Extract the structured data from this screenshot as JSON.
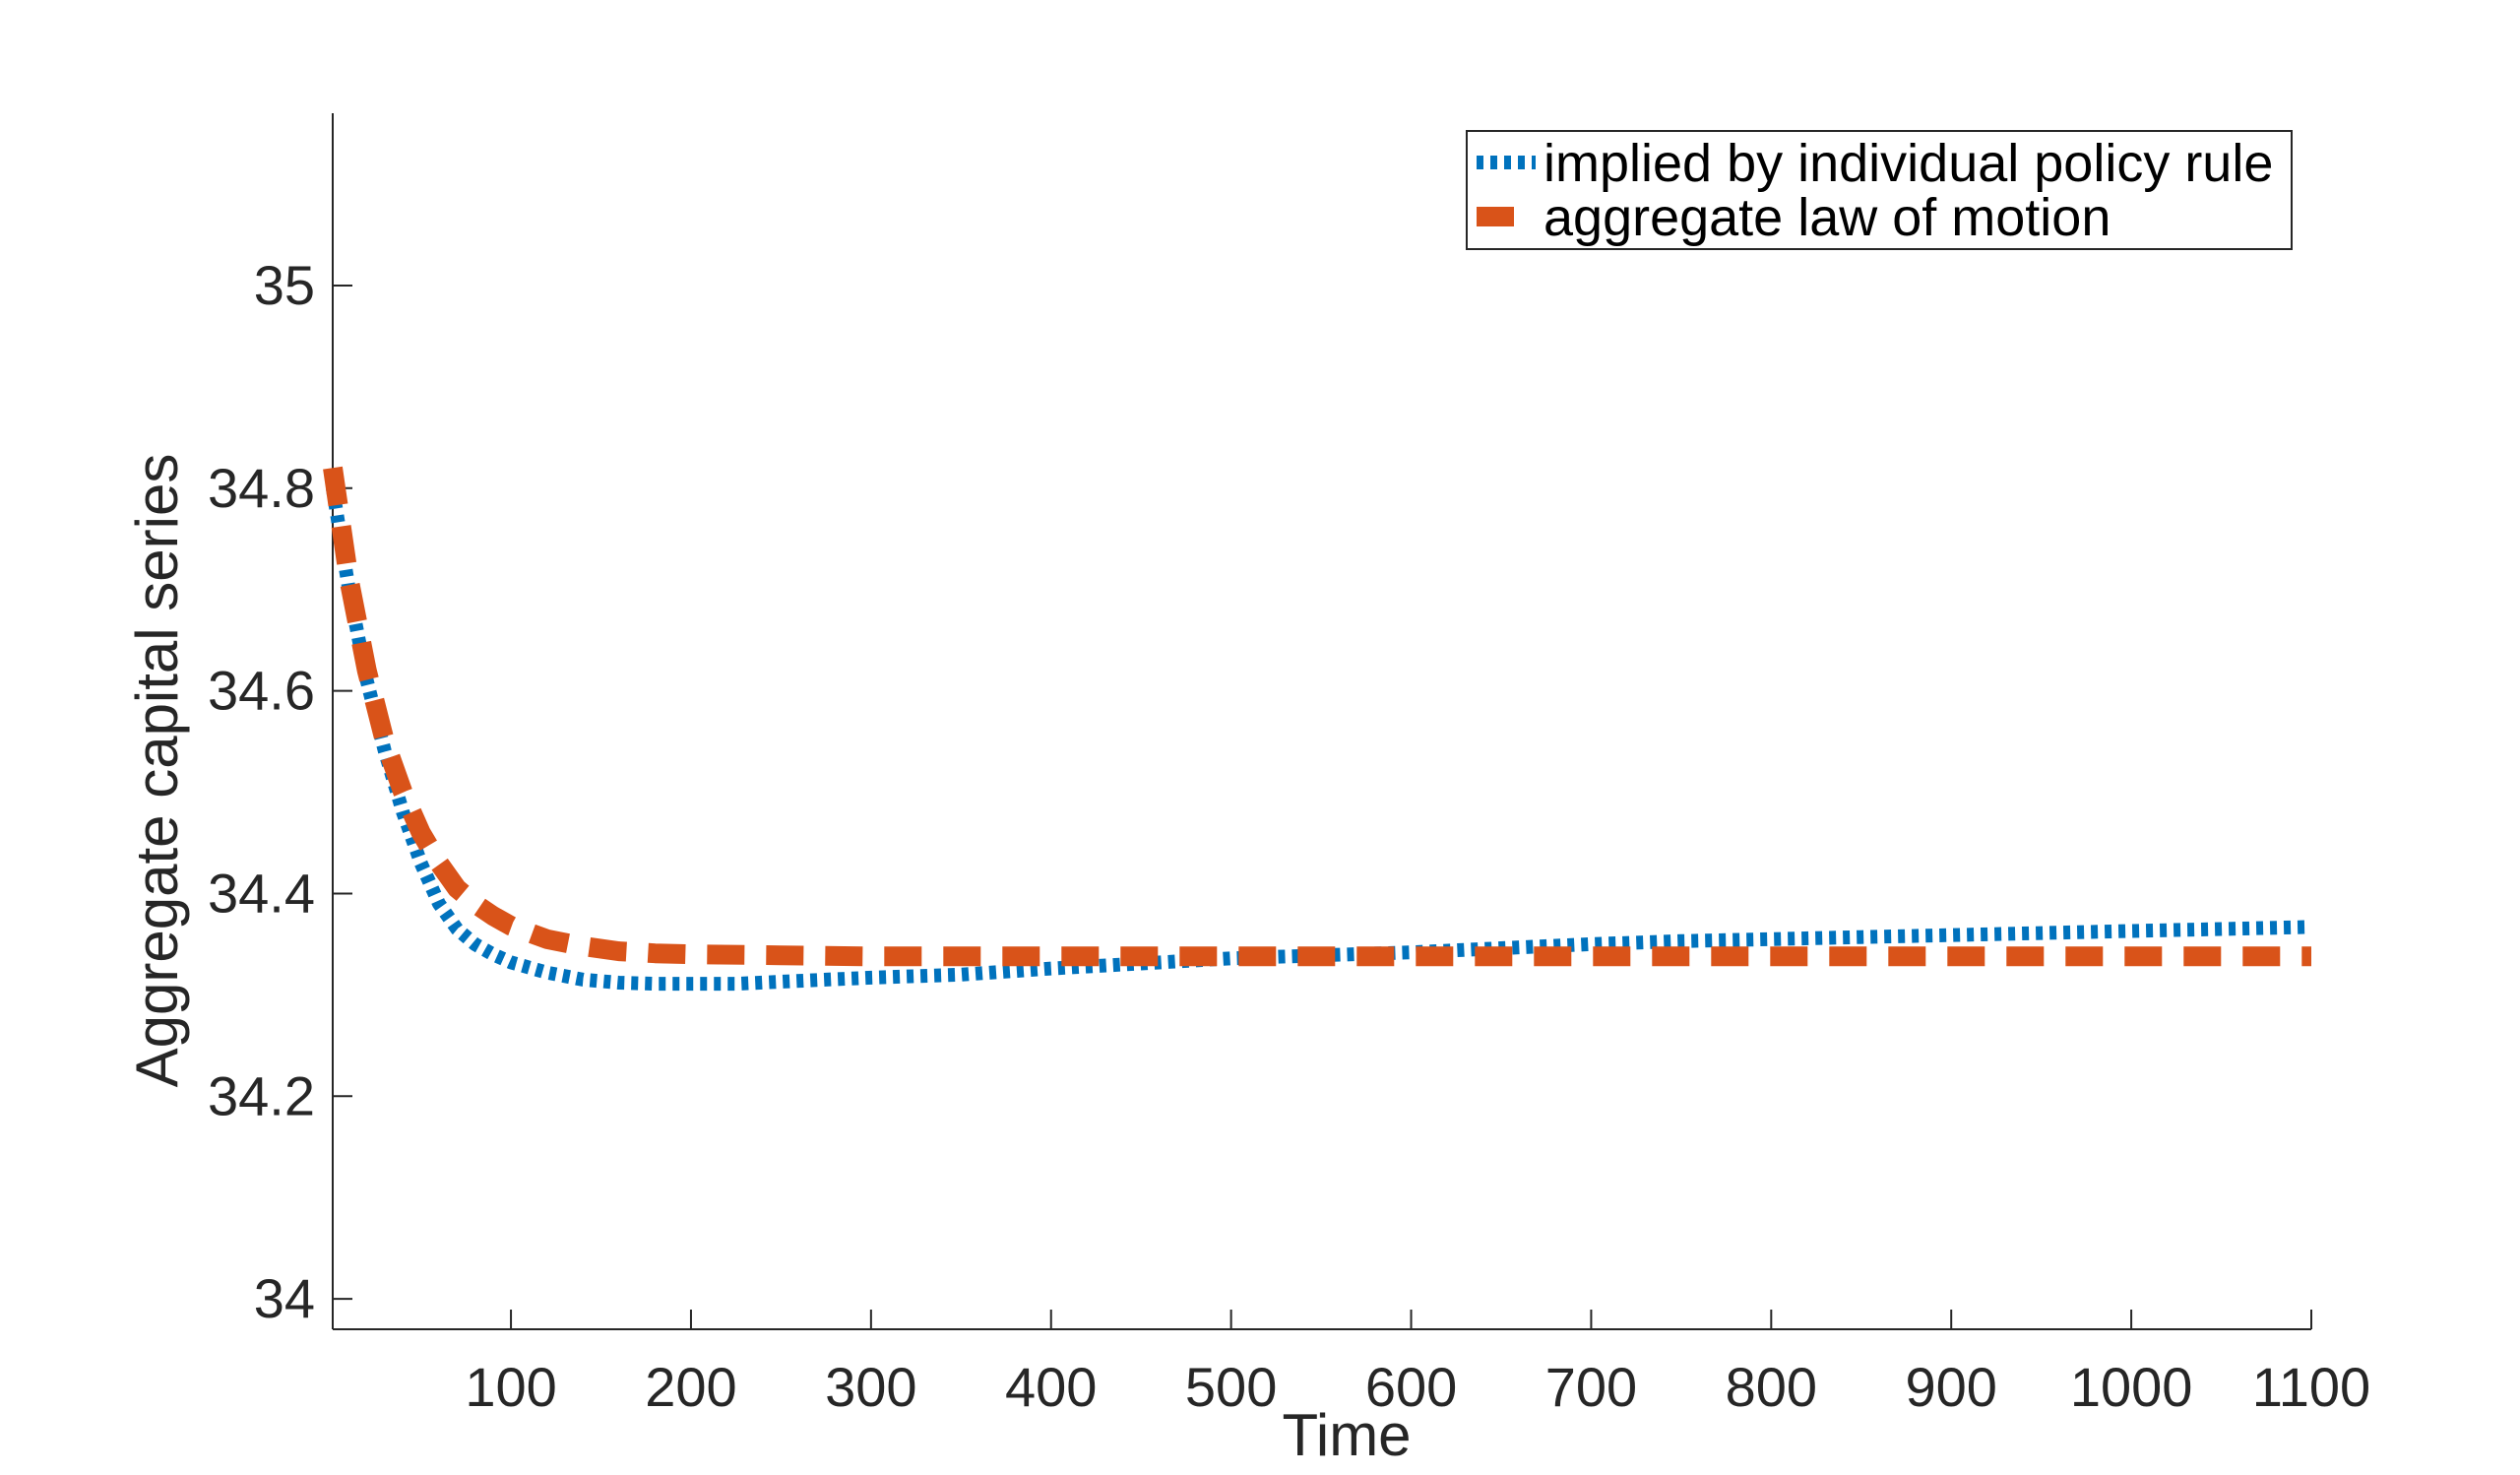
{
  "chart_data": {
    "type": "line",
    "title": "",
    "xlabel": "Time",
    "ylabel": "Aggregate capital series",
    "xlim": [
      1,
      1100
    ],
    "ylim": [
      33.97,
      35.17
    ],
    "xticks": [
      100,
      200,
      300,
      400,
      500,
      600,
      700,
      800,
      900,
      1000,
      1100
    ],
    "xtick_labels": [
      "100",
      "200",
      "300",
      "400",
      "500",
      "600",
      "700",
      "800",
      "900",
      "1000",
      "1100"
    ],
    "yticks": [
      34,
      34.2,
      34.4,
      34.6,
      34.8,
      35
    ],
    "ytick_labels": [
      "34",
      "34.2",
      "34.4",
      "34.6",
      "34.8",
      "35"
    ],
    "grid": false,
    "legend_position": "top-right",
    "series": [
      {
        "name": "implied by individual policy rule",
        "style": "dotted",
        "color": "#0072BD",
        "x": [
          1,
          10,
          20,
          30,
          40,
          50,
          60,
          70,
          80,
          90,
          100,
          120,
          140,
          160,
          180,
          200,
          225,
          250,
          275,
          300,
          350,
          400,
          450,
          500,
          550,
          600,
          650,
          700,
          750,
          800,
          850,
          900,
          950,
          1000,
          1050,
          1100
        ],
        "y": [
          34.8,
          34.7,
          34.61,
          34.54,
          34.48,
          34.43,
          34.39,
          34.365,
          34.35,
          34.34,
          34.332,
          34.322,
          34.315,
          34.312,
          34.311,
          34.311,
          34.311,
          34.313,
          34.315,
          34.317,
          34.32,
          34.326,
          34.331,
          34.336,
          34.339,
          34.342,
          34.346,
          34.35,
          34.353,
          34.355,
          34.357,
          34.359,
          34.361,
          34.363,
          34.365,
          34.367
        ]
      },
      {
        "name": "aggregate law of motion",
        "style": "dashed",
        "color": "#D95319",
        "x": [
          1,
          10,
          20,
          30,
          40,
          50,
          60,
          70,
          80,
          90,
          100,
          120,
          140,
          160,
          180,
          200,
          250,
          300,
          400,
          500,
          600,
          700,
          800,
          900,
          1000,
          1100
        ],
        "y": [
          34.82,
          34.71,
          34.62,
          34.55,
          34.5,
          34.46,
          34.43,
          34.405,
          34.39,
          34.378,
          34.368,
          34.355,
          34.348,
          34.343,
          34.341,
          34.34,
          34.339,
          34.338,
          34.338,
          34.338,
          34.338,
          34.338,
          34.338,
          34.338,
          34.338,
          34.338
        ]
      }
    ]
  }
}
